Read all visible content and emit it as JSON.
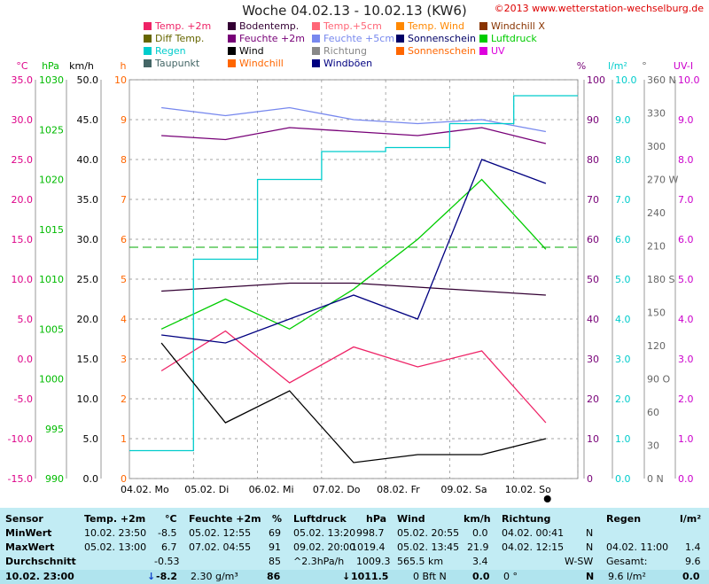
{
  "header": {
    "title": "Woche 04.02.13 - 10.02.13 (KW6)",
    "copyright": "©2013 www.wetterstation-wechselburg.de"
  },
  "legend": [
    {
      "label": "Temp. +2m",
      "color": "#ee2266"
    },
    {
      "label": "Bodentemp.",
      "color": "#330033"
    },
    {
      "label": "Temp.+5cm",
      "color": "#ff6677"
    },
    {
      "label": "Temp. Wind",
      "color": "#ff8800"
    },
    {
      "label": "Windchill X",
      "color": "#883300"
    },
    {
      "label": "Diff Temp.",
      "color": "#666600"
    },
    {
      "label": "Feuchte +2m",
      "color": "#770077"
    },
    {
      "label": "Feuchte +5cm",
      "color": "#7788ee"
    },
    {
      "label": "Sonnenschein",
      "color": "#000066"
    },
    {
      "label": "Luftdruck",
      "color": "#00cc00"
    },
    {
      "label": "Regen",
      "color": "#00cccc"
    },
    {
      "label": "Wind",
      "color": "#000000"
    },
    {
      "label": "Richtung",
      "color": "#888888"
    },
    {
      "label": "Sonnenschein",
      "color": "#ff6600"
    },
    {
      "label": "UV",
      "color": "#dd00dd"
    },
    {
      "label": "Taupunkt",
      "color": "#446666"
    },
    {
      "label": "Windchill",
      "color": "#ff6600"
    },
    {
      "label": "Windböen",
      "color": "#000080"
    }
  ],
  "axes": {
    "units_left": [
      "°C",
      "hPa",
      "km/h",
      "h"
    ],
    "units_right": [
      "%",
      "l/m²",
      "°",
      "UV-I"
    ],
    "temp_ticks": [
      "35.0",
      "30.0",
      "25.0",
      "20.0",
      "15.0",
      "10.0",
      "5.0",
      "0.0",
      "-5.0",
      "-10.0",
      "-15.0"
    ],
    "hpa_ticks": [
      "1030",
      "1025",
      "1020",
      "1015",
      "1010",
      "1005",
      "1000",
      "995",
      "990"
    ],
    "kmh_ticks": [
      "50.0",
      "45.0",
      "40.0",
      "35.0",
      "30.0",
      "25.0",
      "20.0",
      "15.0",
      "10.0",
      "5.0",
      "0.0"
    ],
    "h_ticks": [
      "10",
      "9",
      "8",
      "7",
      "6",
      "5",
      "4",
      "3",
      "2",
      "1",
      "0"
    ],
    "pct_ticks": [
      "100",
      "90",
      "80",
      "70",
      "60",
      "50",
      "40",
      "30",
      "20",
      "10",
      "0"
    ],
    "rain_ticks": [
      "10.0",
      "9.0",
      "8.0",
      "7.0",
      "6.0",
      "5.0",
      "4.0",
      "3.0",
      "2.0",
      "1.0",
      "0.0"
    ],
    "deg_ticks": [
      "360 N",
      "330",
      "300",
      "270 W",
      "240",
      "210",
      "180 S",
      "150",
      "120",
      "90 O",
      "60",
      "30",
      "0 N"
    ],
    "uv_ticks": [
      "10.0",
      "9.0",
      "8.0",
      "7.0",
      "6.0",
      "5.0",
      "4.0",
      "3.0",
      "2.0",
      "1.0",
      "0.0"
    ],
    "day_labels": [
      "04.02. Mo",
      "05.02. Di",
      "06.02. Mi",
      "07.02. Do",
      "08.02. Fr",
      "09.02. Sa",
      "10.02. So"
    ]
  },
  "chart_data": {
    "type": "line",
    "x": [
      "04.02. Mo",
      "05.02. Di",
      "06.02. Mi",
      "07.02. Do",
      "08.02. Fr",
      "09.02. Sa",
      "10.02. So"
    ],
    "xlabel": "",
    "ylim_temp": [
      -15,
      35
    ],
    "ylim_hpa": [
      990,
      1030
    ],
    "ylim_pct": [
      0,
      100
    ],
    "ylim_rain": [
      0,
      10
    ],
    "series": [
      {
        "name": "Temp. +2m",
        "color": "#ee2266",
        "axis": "temp",
        "values": [
          -1.5,
          3.5,
          -3.0,
          1.5,
          -1.0,
          1.0,
          -8.0
        ]
      },
      {
        "name": "Bodentemp.",
        "color": "#330033",
        "axis": "temp",
        "values": [
          8.5,
          9.0,
          9.5,
          9.5,
          9.0,
          8.5,
          8.0
        ]
      },
      {
        "name": "Feuchte +2m",
        "color": "#770077",
        "axis": "pct",
        "values": [
          86,
          85,
          88,
          87,
          86,
          88,
          84
        ]
      },
      {
        "name": "Feuchte +5cm",
        "color": "#7788ee",
        "axis": "pct",
        "values": [
          93,
          91,
          93,
          90,
          89,
          90,
          87
        ]
      },
      {
        "name": "Luftdruck",
        "color": "#00cc00",
        "axis": "hpa",
        "values": [
          1005,
          1008,
          1005,
          1009,
          1014,
          1020,
          1013
        ]
      },
      {
        "name": "Regen",
        "color": "#00cccc",
        "axis": "rain",
        "values": [
          0.7,
          5.5,
          7.5,
          8.2,
          8.3,
          8.9,
          9.6
        ]
      },
      {
        "name": "Wind",
        "color": "#000000",
        "axis": "temp",
        "values": [
          2,
          -8,
          -4,
          -13,
          -12,
          -12,
          -10
        ]
      },
      {
        "name": "Windböen",
        "color": "#000080",
        "axis": "temp",
        "values": [
          3,
          2,
          5,
          8,
          5,
          25,
          22
        ]
      }
    ]
  },
  "table": {
    "rows": [
      {
        "label": "Sensor",
        "t1": "Temp. +2m",
        "t2": "°C",
        "f1": "Feuchte +2m",
        "f2": "%",
        "l1": "Luftdruck",
        "l2": "hPa",
        "w1": "Wind",
        "w2": "km/h",
        "r1": "Richtung",
        "g1": "Regen",
        "g2": "l/m²"
      },
      {
        "label": "MinWert",
        "t1": "10.02.  23:50",
        "t2": "-8.5",
        "f1": "05.02.  12:55",
        "f2": "69",
        "l1": "05.02.  13:20",
        "l2": "998.7",
        "w1": "05.02.  20:55",
        "w2": "0.0",
        "r1": "04.02.  00:41",
        "r2": "N",
        "g1": "",
        "g2": ""
      },
      {
        "label": "MaxWert",
        "t1": "05.02.  13:00",
        "t2": "6.7",
        "f1": "07.02.  04:55",
        "f2": "91",
        "l1": "09.02.  20:00",
        "l2": "1019.4",
        "w1": "05.02.  13:45",
        "w2": "21.9",
        "r1": "04.02.  12:15",
        "r2": "N",
        "g1": "04.02.  11:00",
        "g2": "1.4"
      },
      {
        "label": "Durchschnitt",
        "t1": "",
        "t2": "-0.53",
        "f1": "",
        "f2": "85",
        "l1": "^2.3hPa/h",
        "l2": "1009.3",
        "w1": "565.5 km",
        "w2": "3.4",
        "r1": "",
        "r2": "W-SW",
        "g1": "Gesamt:",
        "g2": "9.6"
      }
    ],
    "current": {
      "label": "10.02. 23:00",
      "temp": "-8.2",
      "hum_extra": "2.30 g/m³",
      "hum": "86",
      "press": "1011.5",
      "wind_extra": "0 Bft N",
      "wind": "0.0",
      "dir_extra": "0 °",
      "dir": "N",
      "rain_extra": "9.6 l/m²",
      "rain": "0.0"
    }
  },
  "colors": {
    "grid": "#888888",
    "temp_axis": "#dd0088",
    "hpa_axis": "#00bb00",
    "h_axis": "#ff6600",
    "rain_axis": "#00cccc",
    "uv_axis": "#cc00cc",
    "table_bg": "#c2ecf4"
  }
}
